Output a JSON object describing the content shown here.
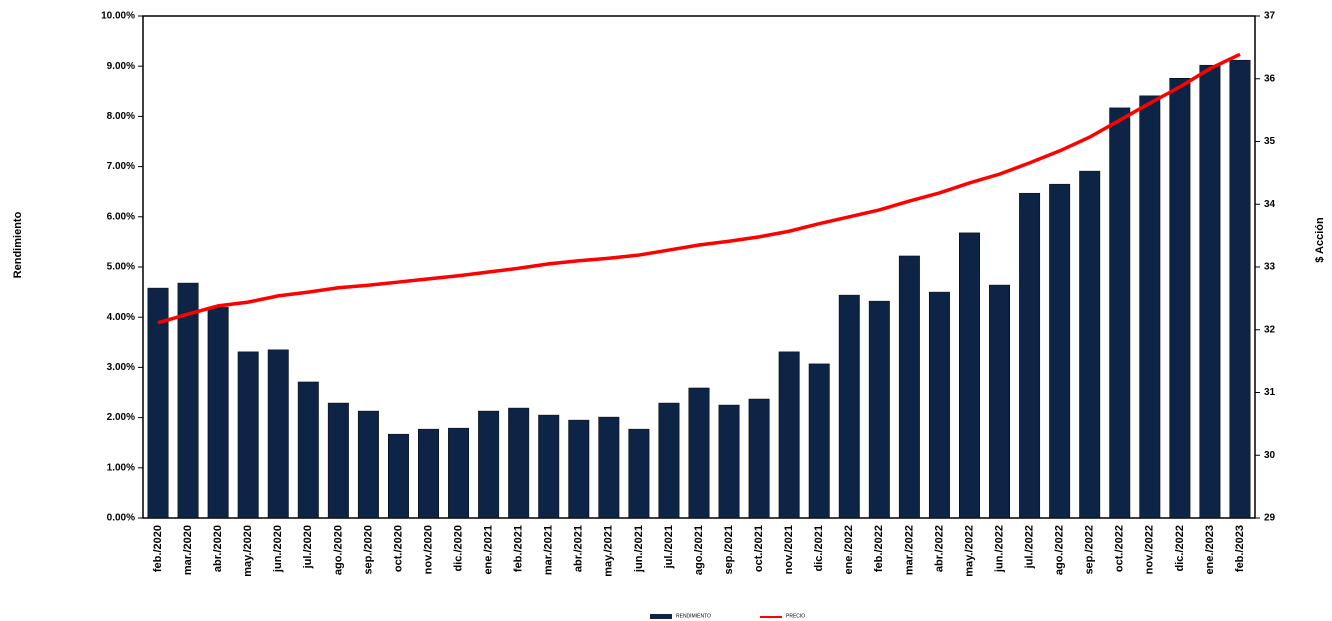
{
  "chart_data": {
    "type": "bar_line",
    "y_label": "Rendimiento",
    "y2_label": "$ Acción",
    "categories": [
      "feb./2020",
      "mar./2020",
      "abr./2020",
      "may./2020",
      "jun./2020",
      "jul./2020",
      "ago./2020",
      "sep./2020",
      "oct./2020",
      "nov./2020",
      "dic./2020",
      "ene./2021",
      "feb./2021",
      "mar./2021",
      "abr./2021",
      "may./2021",
      "jun./2021",
      "jul./2021",
      "ago./2021",
      "sep./2021",
      "oct./2021",
      "nov./2021",
      "dic./2021",
      "ene./2022",
      "feb./2022",
      "mar./2022",
      "abr./2022",
      "may./2022",
      "jun./2022",
      "jul./2022",
      "ago./2022",
      "sep./2022",
      "oct./2022",
      "nov./2022",
      "dic./2022",
      "ene./2023",
      "feb./2023"
    ],
    "series": [
      {
        "name": "RENDIMIENTO",
        "type": "bar",
        "color": "#0d2447",
        "values": [
          4.58,
          4.68,
          4.2,
          3.31,
          3.35,
          2.71,
          2.29,
          2.13,
          1.67,
          1.77,
          1.79,
          2.13,
          2.19,
          2.05,
          1.95,
          2.01,
          1.77,
          2.29,
          2.59,
          2.25,
          2.37,
          3.31,
          3.07,
          4.44,
          4.32,
          5.22,
          4.5,
          5.68,
          4.64,
          6.47,
          6.65,
          6.91,
          8.17,
          8.41,
          8.76,
          9.02,
          9.12
        ]
      },
      {
        "name": "PRECIO",
        "type": "line",
        "axis": "y2",
        "color": "#ff0000",
        "values": [
          32.11,
          32.25,
          32.38,
          32.44,
          32.54,
          32.6,
          32.67,
          32.71,
          32.76,
          32.81,
          32.86,
          32.92,
          32.98,
          33.05,
          33.1,
          33.14,
          33.19,
          33.27,
          33.35,
          33.41,
          33.48,
          33.57,
          33.69,
          33.8,
          33.91,
          34.05,
          34.18,
          34.34,
          34.48,
          34.66,
          34.85,
          35.07,
          35.34,
          35.61,
          35.87,
          36.16,
          36.39
        ]
      }
    ],
    "ylim": [
      0,
      10
    ],
    "yticks": [
      {
        "value": 0,
        "label": "0.00%"
      },
      {
        "value": 1,
        "label": "1.00%"
      },
      {
        "value": 2,
        "label": "2.00%"
      },
      {
        "value": 3,
        "label": "3.00%"
      },
      {
        "value": 4,
        "label": "4.00%"
      },
      {
        "value": 5,
        "label": "5.00%"
      },
      {
        "value": 6,
        "label": "6.00%"
      },
      {
        "value": 7,
        "label": "7.00%"
      },
      {
        "value": 8,
        "label": "8.00%"
      },
      {
        "value": 9,
        "label": "9.00%"
      },
      {
        "value": 10,
        "label": "10.00%"
      }
    ],
    "y2lim": [
      29,
      37
    ],
    "y2ticks": [
      29,
      30,
      31,
      32,
      33,
      34,
      35,
      36,
      37
    ],
    "legend": "bottom"
  }
}
